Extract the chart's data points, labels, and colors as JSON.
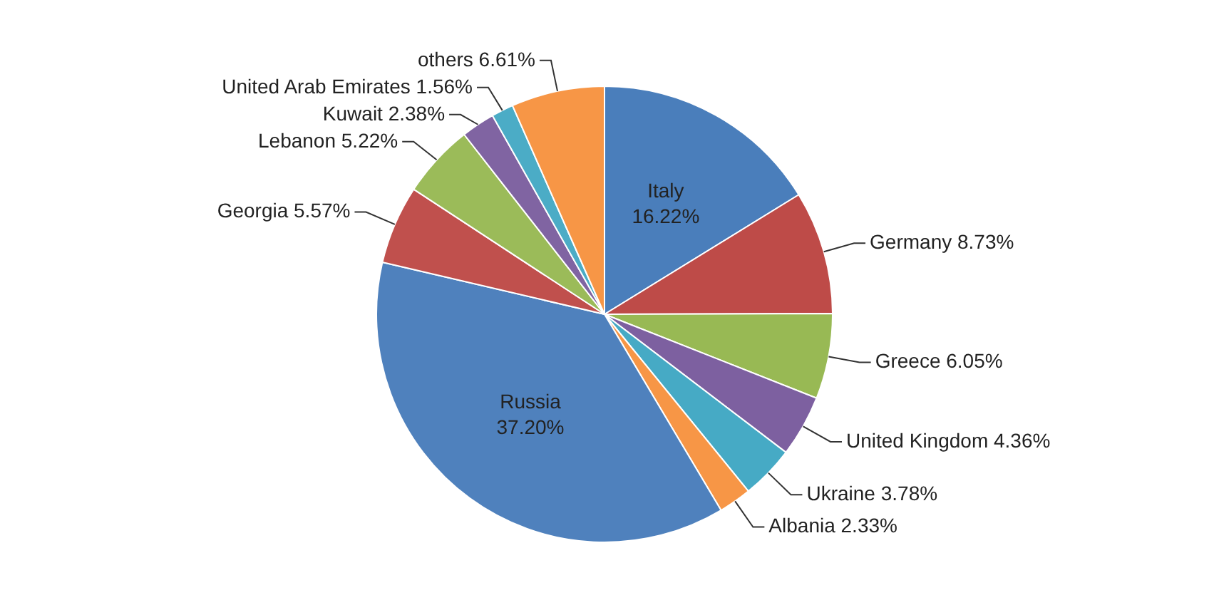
{
  "chart_data": {
    "type": "pie",
    "categories": [
      "Italy",
      "Germany",
      "Greece",
      "United Kingdom",
      "Ukraine",
      "Albania",
      "Russia",
      "Georgia",
      "Lebanon",
      "Kuwait",
      "United Arab Emirates",
      "others"
    ],
    "values": [
      16.22,
      8.73,
      6.05,
      4.36,
      3.78,
      2.33,
      37.2,
      5.57,
      5.22,
      2.38,
      1.56,
      6.61
    ],
    "value_labels": [
      "16.22%",
      "8.73%",
      "6.05%",
      "4.36%",
      "3.78%",
      "2.33%",
      "37.20%",
      "5.57%",
      "5.22%",
      "2.38%",
      "1.56%",
      "6.61%"
    ],
    "colors": [
      "#4a7ebb",
      "#be4b48",
      "#98b954",
      "#7d60a0",
      "#46aac5",
      "#f79646",
      "#4f81bd",
      "#c0504d",
      "#9bbb59",
      "#8064a2",
      "#4bacc6",
      "#f79646"
    ],
    "legend": false
  }
}
